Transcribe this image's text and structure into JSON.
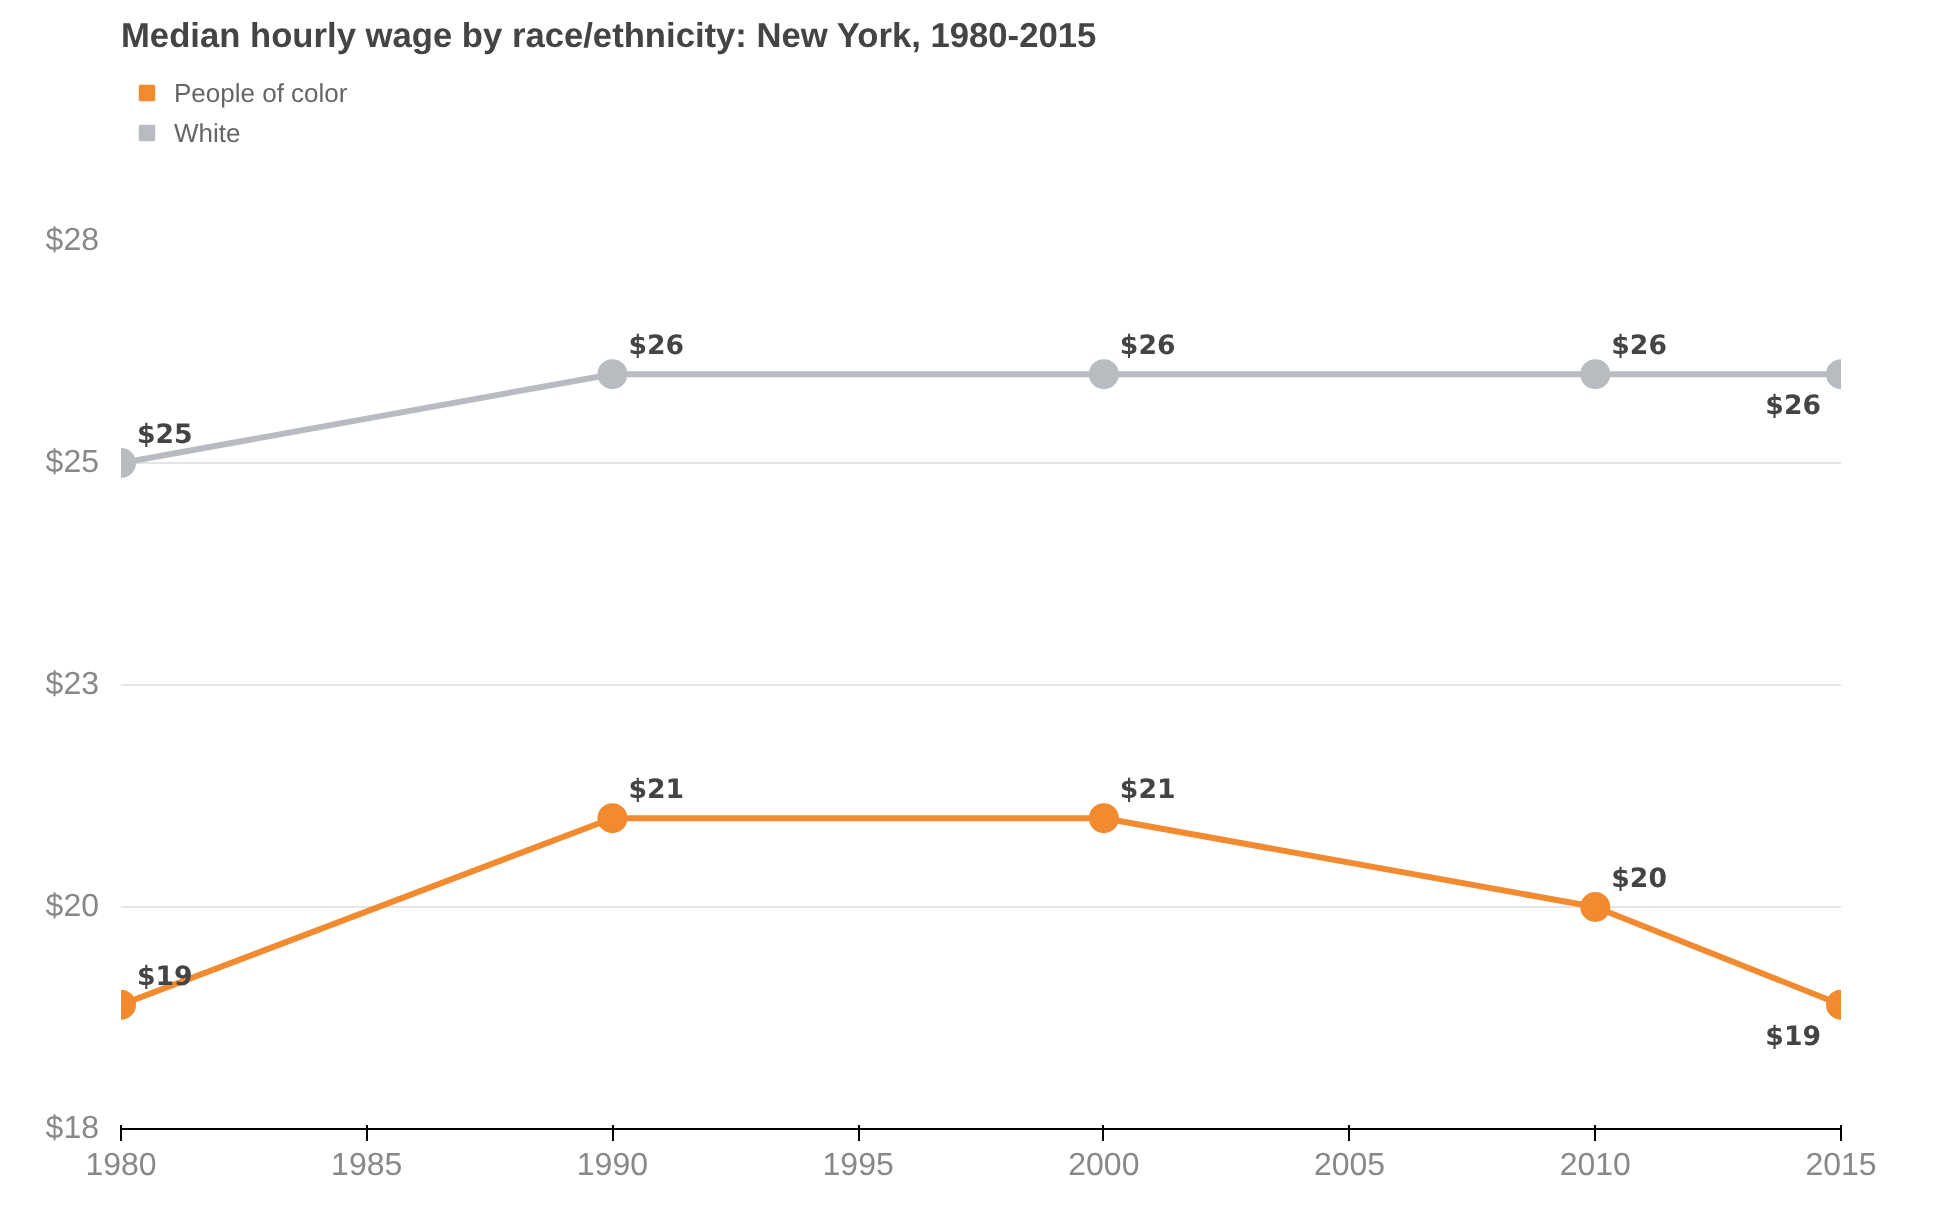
{
  "chart_data": {
    "type": "line",
    "title": "Median hourly wage by race/ethnicity: New York, 1980-2015",
    "x": [
      1980,
      1990,
      2000,
      2010,
      2015
    ],
    "series": [
      {
        "name": "People of color",
        "color": "#f28a30",
        "values": [
          18.9,
          21.0,
          21.0,
          20.0,
          18.9
        ],
        "value_labels": [
          "$19",
          "$21",
          "$21",
          "$20",
          "$19"
        ]
      },
      {
        "name": "White",
        "color": "#b8bcc1",
        "values": [
          25.0,
          26.0,
          26.0,
          26.0,
          26.0
        ],
        "value_labels": [
          "$25",
          "$26",
          "$26",
          "$26",
          "$26"
        ]
      }
    ],
    "xlim": [
      1980,
      2015
    ],
    "xticks": [
      1980,
      1985,
      1990,
      1995,
      2000,
      2005,
      2010,
      2015
    ],
    "ylim": [
      17.5,
      27.5
    ],
    "yticks": [
      {
        "value": 17.5,
        "label": "$18"
      },
      {
        "value": 20,
        "label": "$20"
      },
      {
        "value": 22.5,
        "label": "$23"
      },
      {
        "value": 25,
        "label": "$25"
      },
      {
        "value": 27.5,
        "label": "$28"
      }
    ],
    "grid": "y",
    "legend": "top left",
    "marker": "circle",
    "line_style": "solid"
  }
}
